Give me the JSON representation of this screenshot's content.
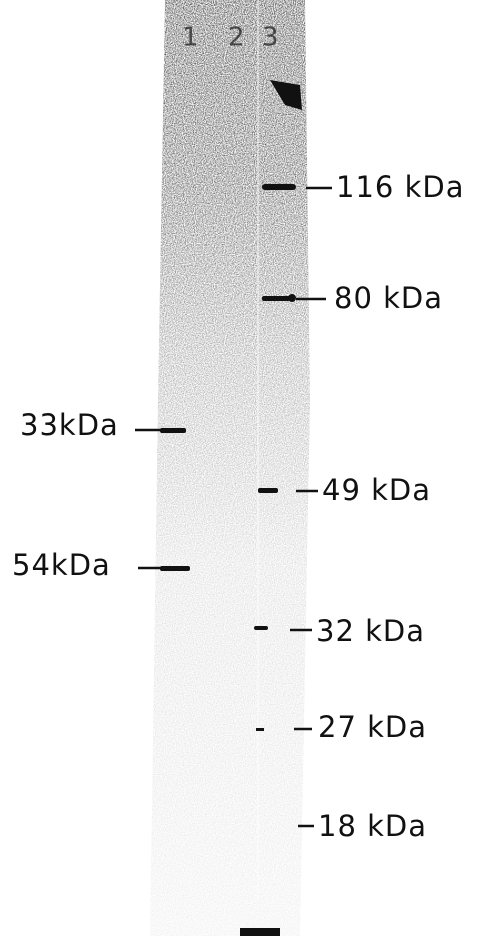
{
  "lane_labels": [
    "1",
    "2",
    "3"
  ],
  "right_markers": [
    {
      "label": "116 kDa"
    },
    {
      "label": "80 kDa"
    },
    {
      "label": "49 kDa"
    },
    {
      "label": "32 kDa"
    },
    {
      "label": "27 kDa"
    },
    {
      "label": "18 kDa"
    }
  ],
  "left_markers": [
    {
      "label": "33kDa"
    },
    {
      "label": "54kDa"
    }
  ]
}
